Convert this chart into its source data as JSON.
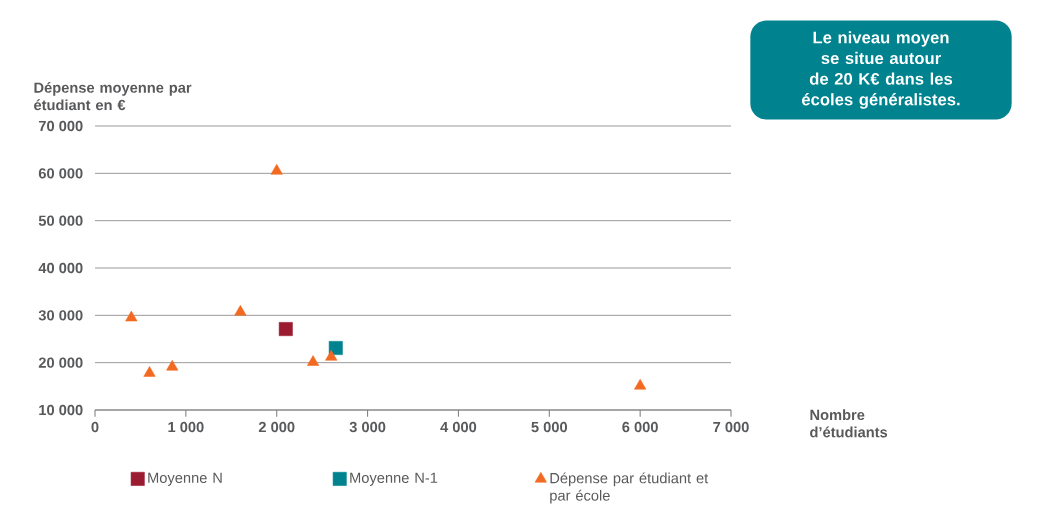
{
  "chart_data": {
    "type": "scatter",
    "xlabel": "Nombre d’étudiants",
    "ylabel": "Dépense moyenne par étudiant en €",
    "annotations": [
      "Le niveau moyen se situe autour de 20 K€ dans les écoles généralistes."
    ],
    "xlim": [
      0,
      7000
    ],
    "ylim": [
      10000,
      70000
    ],
    "xticks": [
      0,
      {
        "value": 1000,
        "label": "1 000"
      },
      {
        "value": 2000,
        "label": "2 000"
      },
      {
        "value": 3000,
        "label": "3 000"
      },
      {
        "value": 4000,
        "label": "4 000"
      },
      {
        "value": 5000,
        "label": "5 000"
      },
      {
        "value": 6000,
        "label": "6 000"
      },
      {
        "value": 7000,
        "label": "7 000"
      }
    ],
    "yticks": [
      {
        "value": 10000,
        "label": "10 000"
      },
      {
        "value": 20000,
        "label": "20 000"
      },
      {
        "value": 30000,
        "label": "30 000"
      },
      {
        "value": 40000,
        "label": "40 000"
      },
      {
        "value": 50000,
        "label": "50 000"
      },
      {
        "value": 60000,
        "label": "60 000"
      },
      {
        "value": 70000,
        "label": "70 000"
      }
    ],
    "grid": "y",
    "legend": "bottom",
    "series": [
      {
        "name": "Moyenne N",
        "color": "#9b1b30",
        "marker": "square",
        "x": [
          2100
        ],
        "values": [
          27100
        ]
      },
      {
        "name": "Moyenne N-1",
        "color": "#00838f",
        "marker": "square",
        "x": [
          2650
        ],
        "values": [
          23100
        ]
      },
      {
        "name": "Dépense par étudiant et par école",
        "color": "#f26a21",
        "marker": "triangle",
        "x": [
          400,
          600,
          850,
          1600,
          2000,
          2400,
          2600,
          6000
        ],
        "values": [
          29500,
          17800,
          19100,
          30700,
          60500,
          20100,
          21200,
          15100
        ]
      }
    ]
  }
}
